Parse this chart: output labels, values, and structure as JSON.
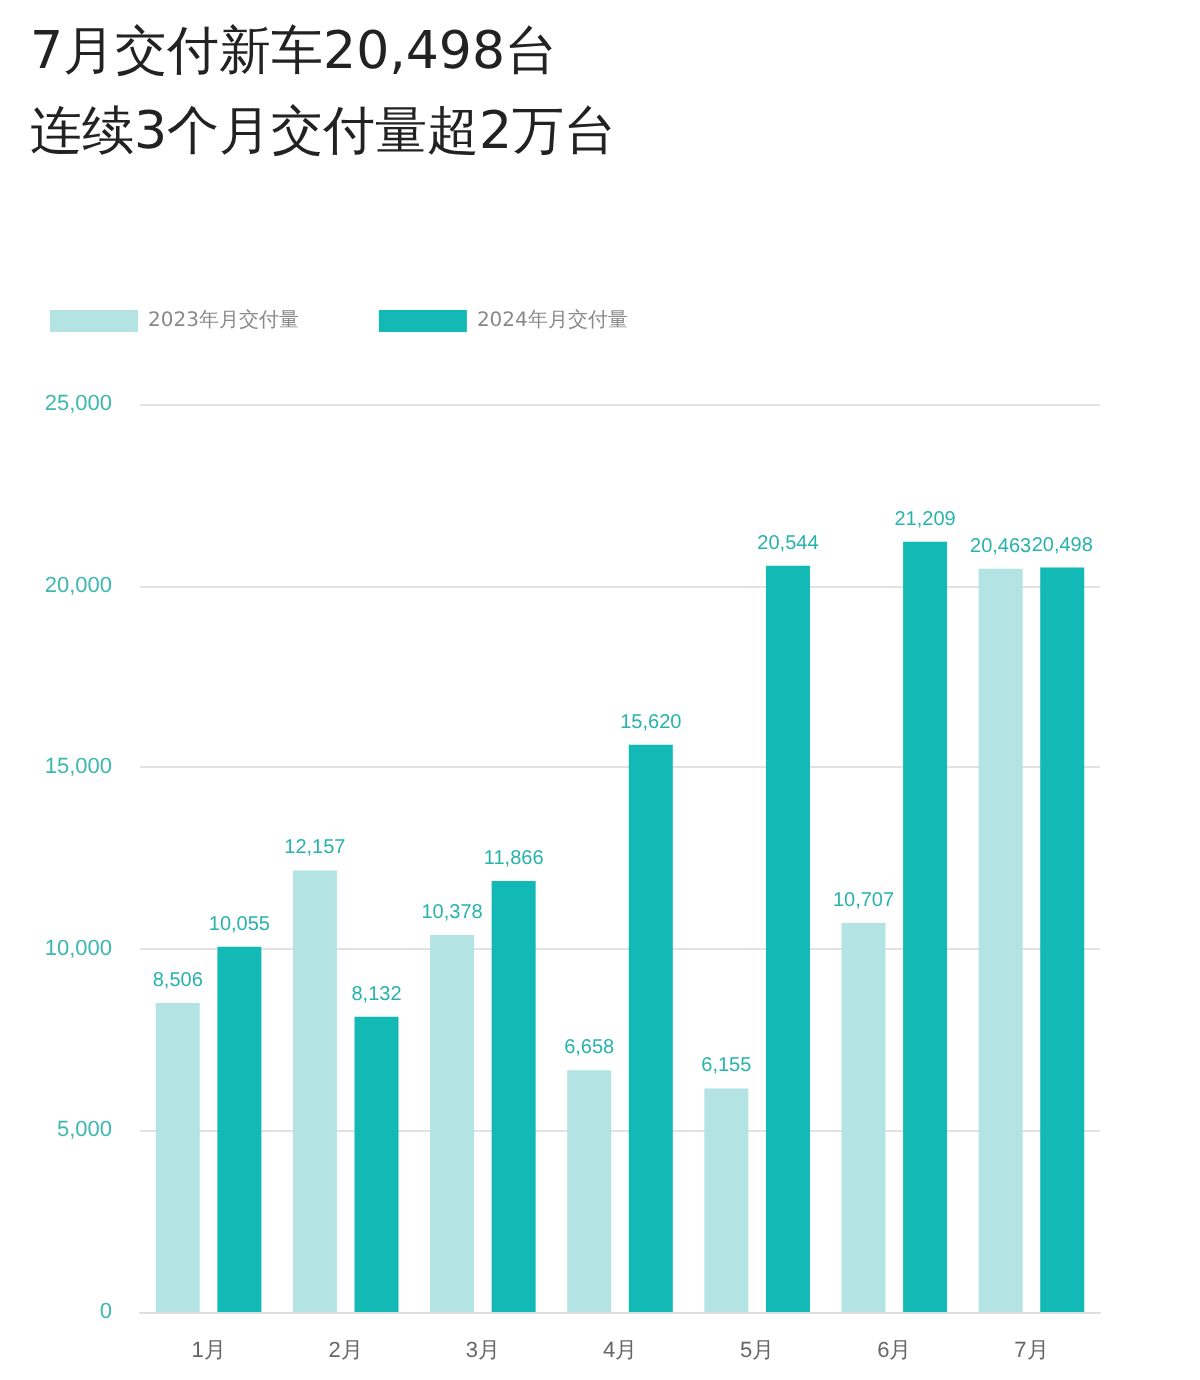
{
  "chart_data": {
    "type": "bar",
    "title": "7月交付新车20,498台",
    "subtitle": "连续3个月交付量超2万台",
    "categories": [
      "1月",
      "2月",
      "3月",
      "4月",
      "5月",
      "6月",
      "7月"
    ],
    "series": [
      {
        "name": "2023年月交付量",
        "color": "#b3e4e3",
        "values": [
          8506,
          12157,
          10378,
          6658,
          6155,
          10707,
          20463
        ],
        "value_labels": [
          "8,506",
          "12,157",
          "10,378",
          "6,658",
          "6,155",
          "10,707",
          "20,463"
        ]
      },
      {
        "name": "2024年月交付量",
        "color": "#12b9b5",
        "values": [
          10055,
          8132,
          11866,
          15620,
          20544,
          21209,
          20498
        ],
        "value_labels": [
          "10,055",
          "8,132",
          "11,866",
          "15,620",
          "20,544",
          "21,209",
          "20,498"
        ]
      }
    ],
    "ylim": [
      0,
      25000
    ],
    "yticks": [
      0,
      {
        "value": 5000,
        "label": "5,000"
      },
      {
        "value": 10000,
        "label": "10,000"
      },
      {
        "value": 15000,
        "label": "15,000"
      },
      {
        "value": 20000,
        "label": "20,000"
      },
      {
        "value": 25000,
        "label": "25,000"
      }
    ],
    "grid": "y",
    "legend": "top left"
  }
}
